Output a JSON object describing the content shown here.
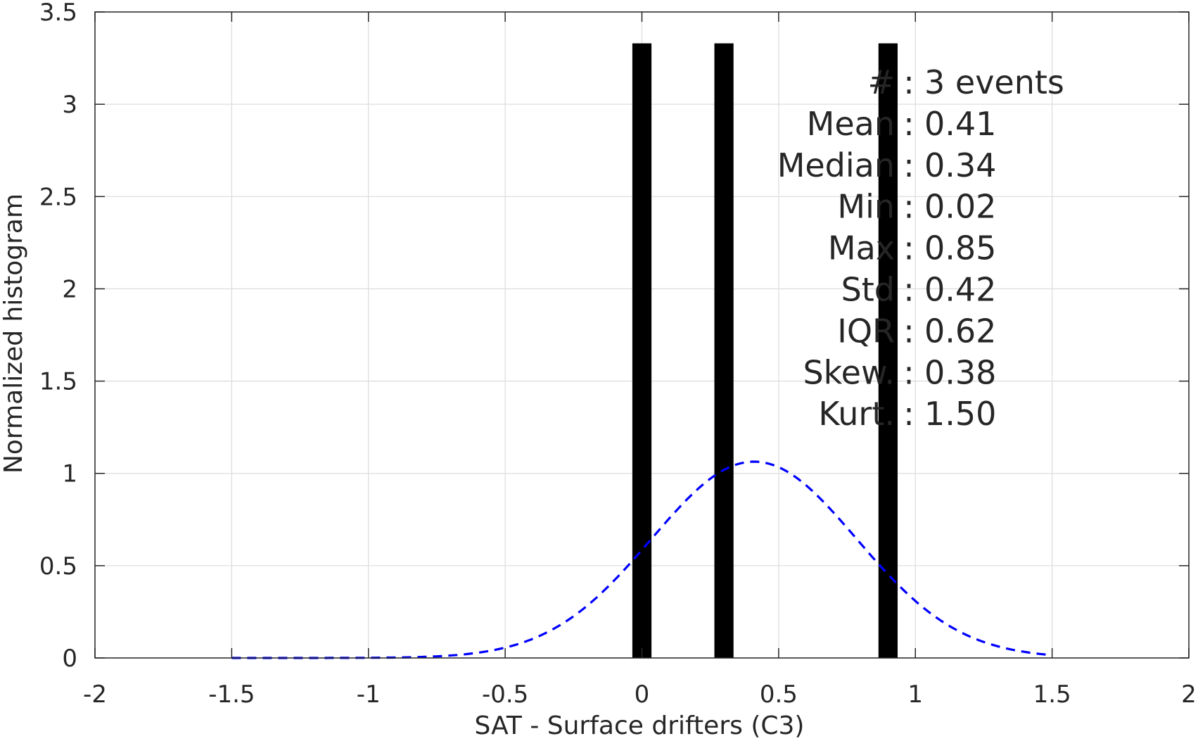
{
  "chart_data": {
    "type": "bar",
    "xlabel": "SAT - Surface drifters (C3)",
    "ylabel": "Normalized histogram",
    "xlim": [
      -2,
      2
    ],
    "ylim": [
      0,
      3.5
    ],
    "xticks": [
      -2,
      -1.5,
      -1,
      -0.5,
      0,
      0.5,
      1,
      1.5,
      2
    ],
    "xtick_labels": [
      "-2",
      "-1.5",
      "-1",
      "-0.5",
      "0",
      "0.5",
      "1",
      "1.5",
      "2"
    ],
    "yticks": [
      0,
      0.5,
      1,
      1.5,
      2,
      2.5,
      3,
      3.5
    ],
    "ytick_labels": [
      "0",
      "0.5",
      "1",
      "1.5",
      "2",
      "2.5",
      "3",
      "3.5"
    ],
    "grid": true,
    "bars": {
      "color": "#000000",
      "centers": [
        0.0,
        0.3,
        0.9
      ],
      "width": 0.07,
      "values": [
        3.33,
        3.33,
        3.33
      ]
    },
    "fit_curve": {
      "style": "dashed",
      "color": "#0000ff",
      "mean": 0.41,
      "std": 0.375,
      "x_range": [
        -1.5,
        1.5
      ]
    },
    "stats": [
      {
        "label": "#",
        "sep": ":",
        "value": "3 events"
      },
      {
        "label": "Mean",
        "sep": ":",
        "value": "0.41"
      },
      {
        "label": "Median",
        "sep": ":",
        "value": "0.34"
      },
      {
        "label": "Min",
        "sep": ":",
        "value": "0.02"
      },
      {
        "label": "Max",
        "sep": ":",
        "value": "0.85"
      },
      {
        "label": "Std",
        "sep": ":",
        "value": "0.42"
      },
      {
        "label": "IQR",
        "sep": ":",
        "value": "0.62"
      },
      {
        "label": "Skew.",
        "sep": ":",
        "value": "0.38"
      },
      {
        "label": "Kurt.",
        "sep": ":",
        "value": "1.50"
      }
    ]
  }
}
